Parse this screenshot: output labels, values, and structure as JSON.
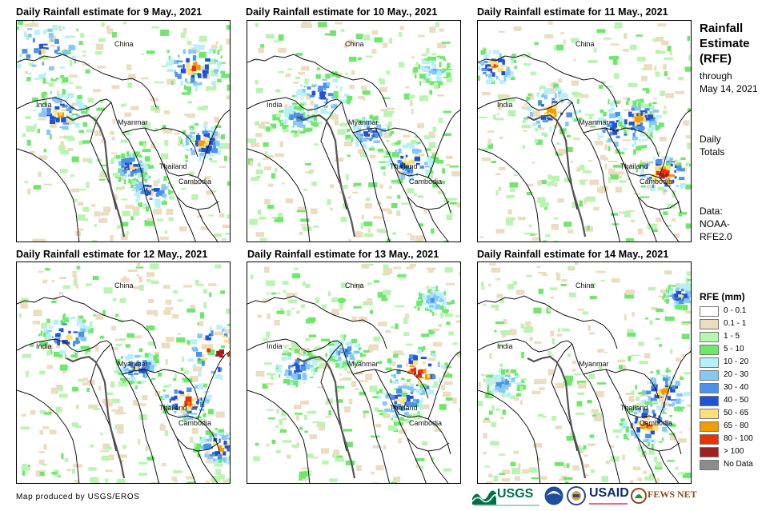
{
  "panels": [
    {
      "title": "Daily Rainfall estimate for 9 May., 2021"
    },
    {
      "title": "Daily Rainfall estimate for 10 May., 2021"
    },
    {
      "title": "Daily Rainfall estimate for 11 May., 2021"
    },
    {
      "title": "Daily Rainfall estimate for 12 May., 2021"
    },
    {
      "title": "Daily Rainfall estimate for 13 May., 2021"
    },
    {
      "title": "Daily Rainfall estimate for 14 May., 2021"
    }
  ],
  "place_labels": {
    "china": "China",
    "india": "India",
    "myanmar": "Myanmar",
    "thailand": "Thailand",
    "cambodia": "Cambodia"
  },
  "sidebar": {
    "title_line1": "Rainfall",
    "title_line2": "Estimate",
    "title_line3": "(RFE)",
    "through_line1": "through",
    "through_line2": "May 14, 2021",
    "daily_line1": "Daily",
    "daily_line2": "Totals",
    "data_line1": "Data:",
    "data_line2": "NOAA-",
    "data_line3": "RFE2.0"
  },
  "legend": {
    "title": "RFE (mm)",
    "items": [
      {
        "label": "0 - 0.1",
        "color": "#ffffff"
      },
      {
        "label": "0.1 - 1",
        "color": "#ecdcc0"
      },
      {
        "label": "1 - 5",
        "color": "#b8f5b0"
      },
      {
        "label": "5 - 10",
        "color": "#6ee86a"
      },
      {
        "label": "10 - 20",
        "color": "#b6f0f8"
      },
      {
        "label": "20 - 30",
        "color": "#86c8f5"
      },
      {
        "label": "30 - 40",
        "color": "#4a93e8"
      },
      {
        "label": "40 - 50",
        "color": "#1f52d8"
      },
      {
        "label": "50 - 65",
        "color": "#fbe07a"
      },
      {
        "label": "65 - 80",
        "color": "#f59a00"
      },
      {
        "label": "80 - 100",
        "color": "#f03000"
      },
      {
        "label": "> 100",
        "color": "#a02020"
      },
      {
        "label": "No Data",
        "color": "#8c8c8c"
      }
    ]
  },
  "credit": "Map produced by USGS/EROS",
  "logos": {
    "usgs": "USGS",
    "usaid": "USAID",
    "fewsnet": "FEWS NET"
  }
}
